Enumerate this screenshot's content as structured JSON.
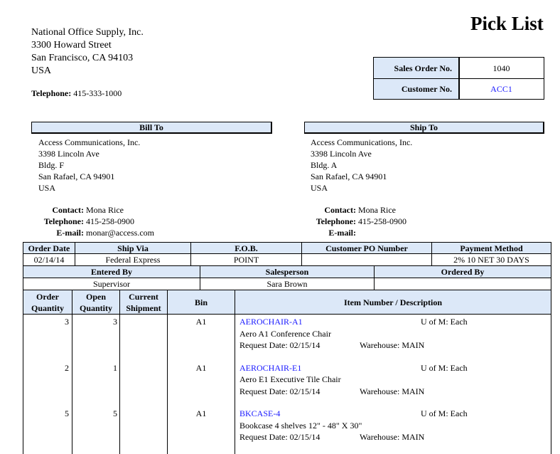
{
  "title": "Pick List",
  "company": {
    "name": "National Office Supply, Inc.",
    "street": "3300 Howard Street",
    "city": "San Francisco, CA 94103",
    "country": "USA",
    "telephone_label": "Telephone:",
    "telephone": "415-333-1000"
  },
  "order_box": {
    "sales_order_label": "Sales Order No.",
    "sales_order": "1040",
    "customer_label": "Customer No.",
    "customer": "ACC1"
  },
  "bill_to": {
    "heading": "Bill To",
    "lines": [
      "Access Communications, Inc.",
      "3398 Lincoln Ave",
      "Bldg. F",
      "San Rafael, CA 94901",
      "USA"
    ],
    "contact_label": "Contact:",
    "contact": "Mona Rice",
    "telephone_label": "Telephone:",
    "telephone": "415-258-0900",
    "email_label": "E-mail:",
    "email": "monar@access.com"
  },
  "ship_to": {
    "heading": "Ship To",
    "lines": [
      "Access Communications, Inc.",
      "3398 Lincoln Ave",
      "Bldg. A",
      "San Rafael, CA 94901",
      "USA"
    ],
    "contact_label": "Contact:",
    "contact": "Mona Rice",
    "telephone_label": "Telephone:",
    "telephone": "415-258-0900",
    "email_label": "E-mail:",
    "email": ""
  },
  "order_info": {
    "headers": [
      "Order Date",
      "Ship Via",
      "F.O.B.",
      "Customer PO Number",
      "Payment Method"
    ],
    "values": [
      "02/14/14",
      "Federal Express",
      "POINT",
      "",
      "2% 10 NET 30 DAYS"
    ]
  },
  "entry_info": {
    "headers": [
      "Entered By",
      "Salesperson",
      "Ordered By"
    ],
    "values": [
      "Supervisor",
      "Sara Brown",
      ""
    ]
  },
  "items_table": {
    "headers": [
      "Order Quantity",
      "Open Quantity",
      "Current Shipment",
      "Bin",
      "Item Number / Description"
    ],
    "rows": [
      {
        "order_qty": "3",
        "open_qty": "3",
        "current": "",
        "bin": "A1",
        "item": "AEROCHAIR-A1",
        "uom": "U of M: Each",
        "desc": "Aero A1 Conference Chair",
        "request": "Request Date: 02/15/14",
        "warehouse": "Warehouse: MAIN"
      },
      {
        "order_qty": "2",
        "open_qty": "1",
        "current": "",
        "bin": "A1",
        "item": "AEROCHAIR-E1",
        "uom": "U of M: Each",
        "desc": "Aero E1 Executive Tile Chair",
        "request": "Request Date: 02/15/14",
        "warehouse": "Warehouse: MAIN"
      },
      {
        "order_qty": "5",
        "open_qty": "5",
        "current": "",
        "bin": "A1",
        "item": "BKCASE-4",
        "uom": "U of M: Each",
        "desc": "Bookcase 4 shelves 12\" - 48\" X 30\"",
        "request": "Request Date: 02/15/14",
        "warehouse": "Warehouse: MAIN"
      }
    ]
  },
  "colors": {
    "header_fill": "#dce8f8",
    "link": "#1a1aff"
  }
}
